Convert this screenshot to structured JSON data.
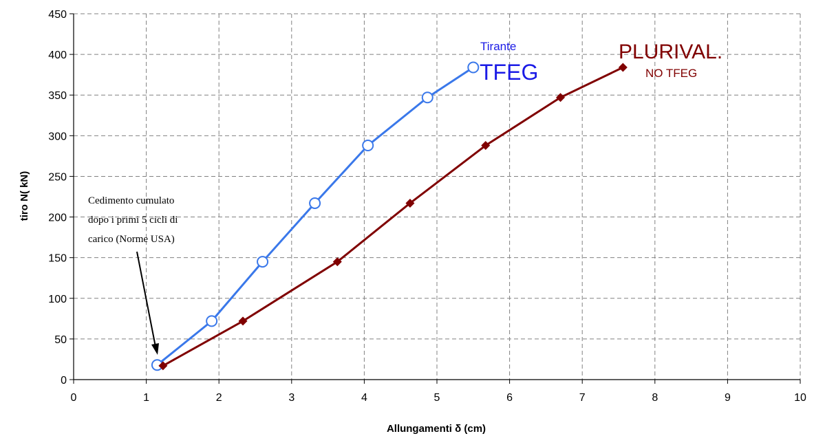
{
  "chart_data": {
    "type": "line",
    "title": "",
    "xlabel": "Allungamenti δ (cm)",
    "ylabel": "tiro N( kN)",
    "xlim": [
      0,
      10
    ],
    "ylim": [
      0,
      450
    ],
    "xticks": [
      0,
      1,
      2,
      3,
      4,
      5,
      6,
      7,
      8,
      9,
      10
    ],
    "yticks": [
      0,
      50,
      100,
      150,
      200,
      250,
      300,
      350,
      400,
      450
    ],
    "grid": true,
    "series": [
      {
        "name": "Tirante TFEG",
        "color": "#3a78ea",
        "marker": "open-circle",
        "x": [
          1.15,
          1.9,
          2.6,
          3.32,
          4.05,
          4.87,
          5.5
        ],
        "y": [
          18,
          72,
          145,
          217,
          288,
          347,
          384
        ]
      },
      {
        "name": "PLURIVAL. NO TFEG",
        "color": "#800000",
        "marker": "diamond",
        "x": [
          1.23,
          2.33,
          3.63,
          4.63,
          5.67,
          6.7,
          7.56
        ],
        "y": [
          17,
          72,
          145,
          217,
          288,
          347,
          384
        ]
      }
    ],
    "labels": {
      "tfeg_small": "Tirante",
      "tfeg_big": "TFEG",
      "plurival_big": "PLURIVAL.",
      "plurival_small": "NO TFEG"
    },
    "annotation": {
      "lines": [
        "Cedimento cumulato",
        "dopo i primi 5 cicli di",
        "carico (Norme USA)"
      ]
    }
  }
}
